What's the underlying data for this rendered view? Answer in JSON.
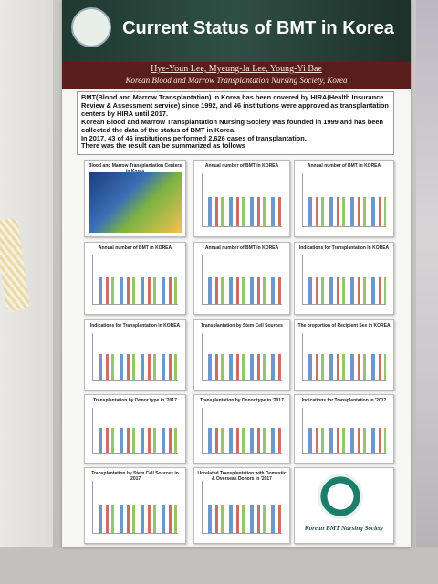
{
  "header": {
    "title": "Current Status of BMT in Korea",
    "authors": "Hye-Youn Lee,  Myeung-Ja Lee,  Young-Yi Bae",
    "affiliation": "Korean Blood and Marrow Transplantation Nursing Society, Korea"
  },
  "intro": {
    "paragraphs": [
      "BMT(Blood and Marrow Transplantation) in Korea has been covered by HIRA(Health Insurance Review & Assessment service) since 1992, and 46 institutions were approved as transplantation centers by HIRA until 2017.",
      "Korean Blood and Marrow Transplantation Nursing Society was founded in 1999 and has been collected the data of the status of BMT in Korea.",
      "In 2017, 43 of 46 institutions performed 2,626 cases of transplantation.",
      "There was the result can be summarized as follows"
    ]
  },
  "panels": [
    {
      "title": "Blood and Marrow Transplantation Centers in Korea"
    },
    {
      "title": "Annual number of BMT in KOREA"
    },
    {
      "title": "Annual number of BMT in KOREA"
    },
    {
      "title": "Annual number of BMT in KOREA"
    },
    {
      "title": "Annual number of BMT in KOREA"
    },
    {
      "title": "Indications for Transplantation in KOREA"
    },
    {
      "title": "Indications for Transplantation in KOREA"
    },
    {
      "title": "Transplantation by Stem Cell Sources"
    },
    {
      "title": "The proportion of Recipient Sex in KOREA"
    },
    {
      "title": "Transplantation by Donor type in '2017"
    },
    {
      "title": "Transplantation by Donor type in '2017"
    },
    {
      "title": "Indications for Transplantation in '2017"
    },
    {
      "title": "Transplantation by Stem Cell Sources in '2017"
    },
    {
      "title": "Unrelated Transplantation with Domestic & Overseas Donors in '2017"
    },
    {
      "title": "Korean BMT Nursing Society"
    }
  ]
}
